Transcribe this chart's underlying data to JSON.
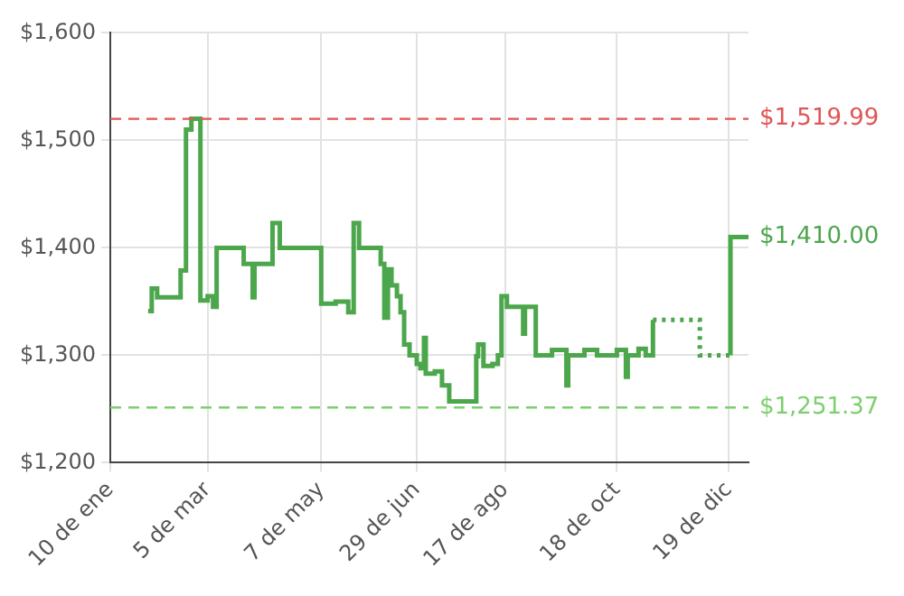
{
  "chart_data": {
    "type": "step",
    "marker": "none",
    "grid": true,
    "xlim": [
      "--01-10",
      "--12-30"
    ],
    "ylim": [
      1200,
      1600
    ],
    "xticks": [
      {
        "value": "--01-10",
        "label": "10 de ene"
      },
      {
        "value": "--03-05",
        "label": "5 de mar"
      },
      {
        "value": "--05-07",
        "label": "7 de may"
      },
      {
        "value": "--06-29",
        "label": "29 de jun"
      },
      {
        "value": "--08-17",
        "label": "17 de ago"
      },
      {
        "value": "--10-18",
        "label": "18 de oct"
      },
      {
        "value": "--12-19",
        "label": "19 de dic"
      }
    ],
    "yticks": [
      {
        "value": 1200,
        "label": "$1,200"
      },
      {
        "value": 1300,
        "label": "$1,300"
      },
      {
        "value": 1400,
        "label": "$1,400"
      },
      {
        "value": 1500,
        "label": "$1,500"
      },
      {
        "value": 1600,
        "label": "$1,600"
      }
    ],
    "series": [
      {
        "color": "#4ca64c",
        "line_style": "solid",
        "x": [
          "--01-31",
          "--02-02",
          "--02-05",
          "--02-18",
          "--02-21",
          "--02-24",
          "--03-01",
          "--03-05",
          "--03-08",
          "--03-10",
          "--03-25",
          "--03-30",
          "--03-31",
          "--04-10",
          "--04-14",
          "--05-07",
          "--05-15",
          "--05-22",
          "--05-25",
          "--05-28",
          "--06-09",
          "--06-11",
          "--06-13",
          "--06-15",
          "--06-18",
          "--06-20",
          "--06-22",
          "--06-25",
          "--06-29",
          "--07-01",
          "--07-03",
          "--07-04",
          "--07-09",
          "--07-13",
          "--07-17",
          "--08-01",
          "--08-02",
          "--08-05",
          "--08-10",
          "--08-13",
          "--08-15",
          "--08-18",
          "--08-27",
          "--08-28",
          "--09-03",
          "--09-12",
          "--09-20",
          "--09-21",
          "--09-30",
          "--10-07",
          "--10-18",
          "--10-23",
          "--10-24",
          "--10-30",
          "--11-03",
          "--11-07"
        ],
        "values": [
          1341,
          1362,
          1354,
          1379,
          1510,
          1520,
          1351,
          1355,
          1345,
          1400,
          1385,
          1354,
          1385,
          1423,
          1400,
          1348,
          1350,
          1340,
          1423,
          1400,
          1385,
          1335,
          1380,
          1365,
          1355,
          1340,
          1310,
          1300,
          1292,
          1288,
          1316,
          1283,
          1285,
          1272,
          1257,
          1299,
          1310,
          1290,
          1292,
          1300,
          1355,
          1345,
          1320,
          1345,
          1300,
          1305,
          1272,
          1300,
          1305,
          1300,
          1305,
          1280,
          1300,
          1306,
          1300,
          1333
        ]
      },
      {
        "color": "#4ca64c",
        "line_style": "dotted",
        "x": [
          "--11-07",
          "--12-02",
          "--12-03",
          "--12-20"
        ],
        "values": [
          1333,
          1333,
          1300,
          1300
        ]
      },
      {
        "color": "#4ca64c",
        "line_style": "solid",
        "x": [
          "--12-20",
          "--12-20",
          "--12-30"
        ],
        "values": [
          1300,
          1410,
          1410
        ]
      }
    ],
    "ref_lines": [
      {
        "axis": "y",
        "value": 1519.99,
        "label": "$1,519.99",
        "color": "#e05555",
        "line_style": "dashed"
      },
      {
        "axis": "y",
        "value": 1251.37,
        "label": "$1,251.37",
        "color": "#7ccf6e",
        "line_style": "dashed"
      }
    ],
    "annotations": [
      {
        "text": "$1,410.00",
        "x": "--12-30",
        "y": 1410
      }
    ]
  }
}
